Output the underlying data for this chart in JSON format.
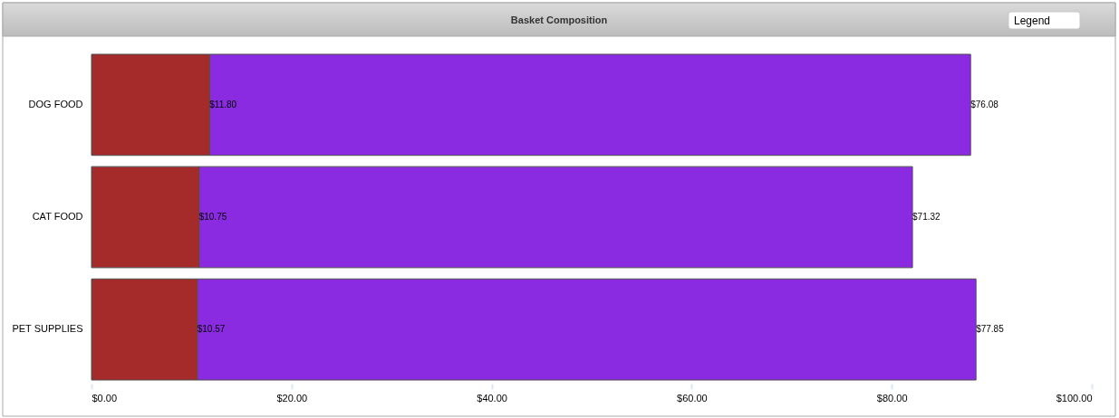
{
  "chart_data": {
    "type": "bar",
    "orientation": "horizontal",
    "stacked": true,
    "title": "Basket Composition",
    "categories": [
      "DOG FOOD",
      "CAT FOOD",
      "PET SUPPLIES"
    ],
    "series": [
      {
        "color": "#a52a2a",
        "values": [
          11.8,
          10.75,
          10.57
        ],
        "value_labels": [
          "$11.80",
          "$10.75",
          "$10.57"
        ]
      },
      {
        "color": "#8a2be2",
        "values": [
          76.08,
          71.32,
          77.85
        ],
        "value_labels": [
          "$76.08",
          "$71.32",
          "$77.85"
        ]
      }
    ],
    "xlim": [
      0,
      100
    ],
    "xticks": [
      {
        "value": 0,
        "label": "$0.00"
      },
      {
        "value": 20,
        "label": "$20.00"
      },
      {
        "value": 40,
        "label": "$40.00"
      },
      {
        "value": 60,
        "label": "$60.00"
      },
      {
        "value": 80,
        "label": "$80.00"
      },
      {
        "value": 100,
        "label": "$100.00"
      }
    ],
    "annotations": [
      "Legend"
    ]
  }
}
